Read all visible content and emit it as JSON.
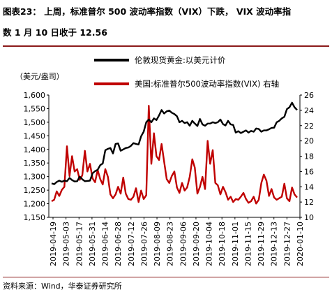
{
  "header": {
    "title_line1": "图表23：  上周，标准普尔 500 波动率指数（VIX）下跌，  VIX 波动率指",
    "title_line2": "数 1 月 10 日收于 12.56"
  },
  "source_note": "资料来源：Wind，华泰证券研究所",
  "colors": {
    "gold": "#000000",
    "vix": "#c00000",
    "accent": "#8b1a1a"
  },
  "chart_data": {
    "type": "line",
    "title": "",
    "left_axis_unit": "（美元/盎司）",
    "ylim_left": [
      1150,
      1600
    ],
    "ylim_right": [
      10,
      26
    ],
    "yticks_left": [
      "1,150",
      "1,200",
      "1,250",
      "1,300",
      "1,350",
      "1,400",
      "1,450",
      "1,500",
      "1,550",
      "1,600"
    ],
    "yticks_right": [
      "10",
      "12",
      "14",
      "16",
      "18",
      "20",
      "22",
      "24",
      "26"
    ],
    "xticks": [
      "2019-04-19",
      "2019-05-03",
      "2019-05-17",
      "2019-05-31",
      "2019-06-14",
      "2019-06-28",
      "2019-07-12",
      "2019-07-26",
      "2019-08-09",
      "2019-08-23",
      "2019-09-06",
      "2019-09-20",
      "2019-10-04",
      "2019-10-18",
      "2019-11-01",
      "2019-11-15",
      "2019-11-29",
      "2019-12-13",
      "2019-12-27",
      "2020-01-10"
    ],
    "series": [
      {
        "name": "伦敦现货黄金:以美元计价",
        "axis": "left",
        "values": [
          1275,
          1272,
          1280,
          1285,
          1281,
          1285,
          1283,
          1295,
          1287,
          1282,
          1283,
          1300,
          1290,
          1283,
          1284,
          1285,
          1312,
          1320,
          1325,
          1342,
          1348,
          1397,
          1402,
          1405,
          1385,
          1420,
          1422,
          1395,
          1400,
          1405,
          1407,
          1413,
          1423,
          1420,
          1418,
          1448,
          1465,
          1500,
          1510,
          1500,
          1514,
          1508,
          1525,
          1545,
          1532,
          1540,
          1543,
          1535,
          1530,
          1522,
          1500,
          1505,
          1497,
          1500,
          1487,
          1505,
          1495,
          1486,
          1512,
          1492,
          1487,
          1495,
          1495,
          1500,
          1497,
          1500,
          1510,
          1493,
          1488,
          1505,
          1492,
          1490,
          1462,
          1467,
          1460,
          1465,
          1470,
          1462,
          1468,
          1465,
          1477,
          1475,
          1465,
          1470,
          1470,
          1474,
          1479,
          1480,
          1500,
          1505,
          1514,
          1520,
          1548,
          1555,
          1572,
          1555,
          1545
        ]
      },
      {
        "name": "美国:标准普尔500波动率指数(VIX) 右轴",
        "axis": "right",
        "values": [
          12.1,
          12.3,
          13.4,
          12.8,
          13.6,
          14.0,
          19.3,
          15.4,
          18.0,
          16.0,
          16.3,
          14.9,
          15.5,
          18.7,
          16.0,
          17.0,
          15.1,
          14.6,
          16.2,
          15.0,
          14.3,
          16.3,
          15.3,
          13.0,
          12.5,
          13.0,
          14.0,
          13.1,
          15.2,
          13.1,
          12.4,
          12.3,
          12.7,
          13.8,
          12.0,
          13.5,
          12.4,
          12.9,
          24.6,
          17.0,
          21.0,
          18.0,
          17.5,
          19.6,
          17.3,
          15.0,
          14.5,
          15.4,
          16.0,
          13.9,
          13.2,
          14.5,
          13.5,
          13.9,
          15.3,
          17.6,
          16.5,
          13.1,
          14.0,
          15.3,
          13.7,
          20.0,
          17.0,
          18.8,
          14.5,
          14.2,
          13.0,
          14.0,
          13.3,
          12.3,
          12.7,
          12.0,
          12.4,
          12.3,
          12.7,
          13.2,
          12.4,
          11.9,
          12.1,
          12.7,
          11.8,
          12.3,
          14.5,
          15.6,
          14.8,
          12.8,
          13.7,
          12.6,
          12.3,
          12.5,
          12.7,
          14.4,
          12.5,
          12.1,
          13.9,
          13.0,
          12.6
        ]
      }
    ]
  }
}
